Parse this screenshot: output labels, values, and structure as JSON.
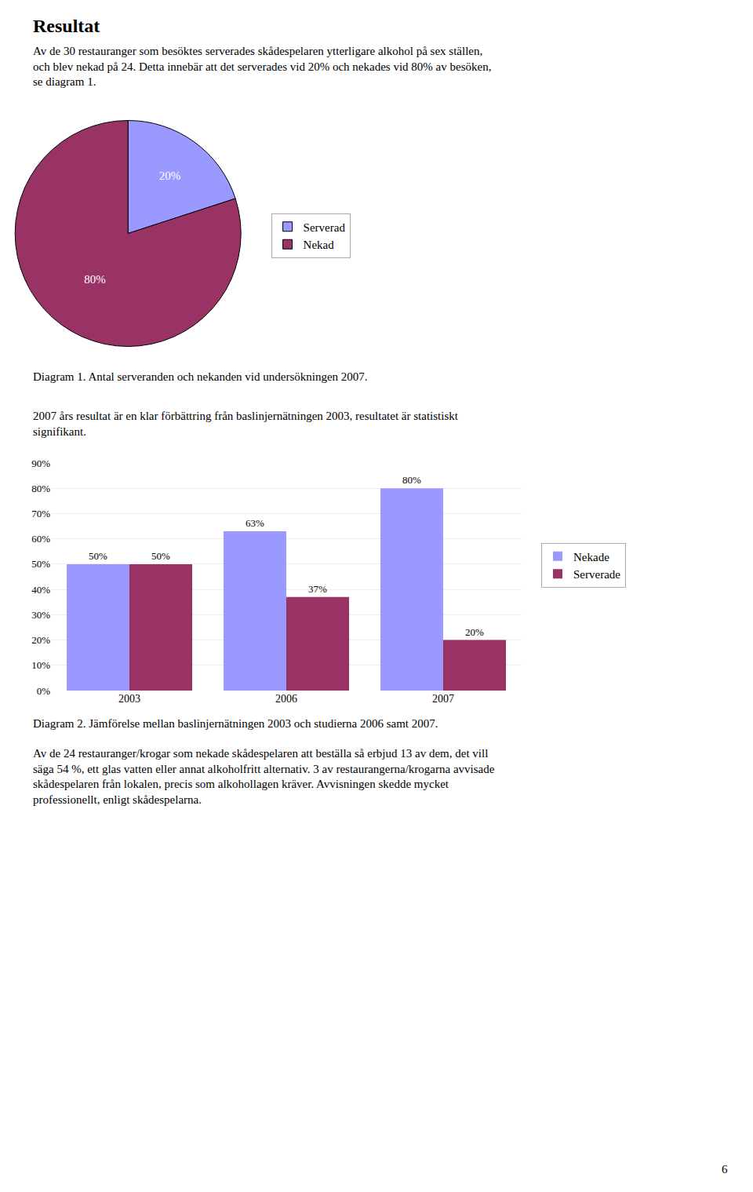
{
  "title": "Resultat",
  "annotations": [
    "Av de 30 restauranger som besöktes serverades skådespelaren ytterligare alkohol på sex ställen,\noch blev nekad på 24. Detta innebär att det serverades vid 20% och nekades vid 80% av besöken,\nse diagram 1.",
    "2007 års resultat är en klar förbättring från baslinjernätningen 2003, resultatet är statistiskt\nsignifikant.",
    "Av de 24 restauranger/krogar som nekade skådespelaren att beställa så erbjud 13 av dem, det vill\nsäga 54 %, ett glas vatten eller annat alkoholfritt alternativ. 3 av restaurangerna/krogarna avvisade\nskådespelaren från lokalen, precis som alkohollagen kräver. Avvisningen skedde mycket\nprofessionellt, enligt skådespelarna.",
    "6"
  ],
  "chart_data": [
    {
      "type": "pie",
      "title": "Diagram 1. Antal serveranden och nekanden vid undersökningen 2007.",
      "categories": [
        "Serverad",
        "Nekad"
      ],
      "values": [
        20,
        80
      ],
      "value_labels": [
        "20%",
        "80%"
      ],
      "colors": [
        "#9999ff",
        "#993366"
      ],
      "data_labels": true,
      "legend": "right"
    },
    {
      "type": "bar",
      "title": "Diagram 2. Jämförelse mellan baslinjernätningen 2003 och studierna 2006 samt 2007.",
      "categories": [
        "2003",
        "2006",
        "2007"
      ],
      "series": [
        {
          "name": "Nekade",
          "color": "#9999ff",
          "values": [
            50,
            63,
            80
          ],
          "value_labels": [
            "50%",
            "63%",
            "80%"
          ]
        },
        {
          "name": "Serverade",
          "color": "#993366",
          "values": [
            50,
            37,
            20
          ],
          "value_labels": [
            "50%",
            "37%",
            "20%"
          ]
        }
      ],
      "ylim": [
        0,
        90
      ],
      "yticks": [
        {
          "value": 0,
          "label": "0%"
        },
        {
          "value": 10,
          "label": "10%"
        },
        {
          "value": 20,
          "label": "20%"
        },
        {
          "value": 30,
          "label": "30%"
        },
        {
          "value": 40,
          "label": "40%"
        },
        {
          "value": 50,
          "label": "50%"
        },
        {
          "value": 60,
          "label": "60%"
        },
        {
          "value": 70,
          "label": "70%"
        },
        {
          "value": 80,
          "label": "80%"
        },
        {
          "value": 90,
          "label": "90%"
        }
      ],
      "grid": true,
      "data_labels": true,
      "legend": "right"
    }
  ]
}
